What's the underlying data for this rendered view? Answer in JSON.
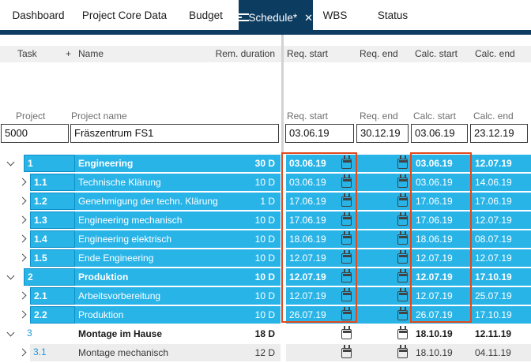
{
  "tabs": {
    "items": [
      {
        "label": "Dashboard"
      },
      {
        "label": "Project Core Data"
      },
      {
        "label": "Budget"
      },
      {
        "label": "Schedule*"
      },
      {
        "label": "WBS"
      },
      {
        "label": "Status"
      }
    ],
    "active": "Schedule*"
  },
  "grid_header": {
    "task": "Task",
    "add": "+",
    "name": "Name",
    "rem_duration": "Rem. duration",
    "req_start": "Req. start",
    "req_end": "Req. end",
    "calc_start": "Calc. start",
    "calc_end": "Calc. end"
  },
  "project_labels": {
    "project": "Project",
    "project_name": "Project name",
    "req_start": "Req. start",
    "req_end": "Req. end",
    "calc_start": "Calc. start",
    "calc_end": "Calc. end"
  },
  "project": {
    "id": "5000",
    "name": "Fräszentrum FS1",
    "req_start": "03.06.19",
    "req_end": "30.12.19",
    "calc_start": "03.06.19",
    "calc_end": "23.12.19"
  },
  "tasks": [
    {
      "num": "1",
      "name": "Engineering",
      "dur": "30 D",
      "req_start": "03.06.19",
      "calc_start": "03.06.19",
      "calc_end": "12.07.19",
      "level": 1,
      "summary": true,
      "expanded": true,
      "theme": "cyan"
    },
    {
      "num": "1.1",
      "name": "Technische Klärung",
      "dur": "10 D",
      "req_start": "03.06.19",
      "calc_start": "03.06.19",
      "calc_end": "14.06.19",
      "level": 2,
      "summary": false,
      "expanded": false,
      "theme": "cyan"
    },
    {
      "num": "1.2",
      "name": "Genehmigung der techn. Klärung",
      "dur": "1 D",
      "req_start": "17.06.19",
      "calc_start": "17.06.19",
      "calc_end": "17.06.19",
      "level": 2,
      "summary": false,
      "expanded": false,
      "theme": "cyan"
    },
    {
      "num": "1.3",
      "name": "Engineering mechanisch",
      "dur": "10 D",
      "req_start": "17.06.19",
      "calc_start": "17.06.19",
      "calc_end": "12.07.19",
      "level": 2,
      "summary": false,
      "expanded": false,
      "theme": "cyan"
    },
    {
      "num": "1.4",
      "name": "Engineering elektrisch",
      "dur": "10 D",
      "req_start": "18.06.19",
      "calc_start": "18.06.19",
      "calc_end": "08.07.19",
      "level": 2,
      "summary": false,
      "expanded": false,
      "theme": "cyan"
    },
    {
      "num": "1.5",
      "name": "Ende Engineering",
      "dur": "10 D",
      "req_start": "12.07.19",
      "calc_start": "12.07.19",
      "calc_end": "12.07.19",
      "level": 2,
      "summary": false,
      "expanded": false,
      "theme": "cyan"
    },
    {
      "num": "2",
      "name": "Produktion",
      "dur": "10 D",
      "req_start": "12.07.19",
      "calc_start": "12.07.19",
      "calc_end": "17.10.19",
      "level": 1,
      "summary": true,
      "expanded": true,
      "theme": "cyan"
    },
    {
      "num": "2.1",
      "name": "Arbeitsvorbereitung",
      "dur": "10 D",
      "req_start": "12.07.19",
      "calc_start": "12.07.19",
      "calc_end": "25.07.19",
      "level": 2,
      "summary": false,
      "expanded": false,
      "theme": "cyan"
    },
    {
      "num": "2.2",
      "name": "Produktion",
      "dur": "10 D",
      "req_start": "26.07.19",
      "calc_start": "26.07.19",
      "calc_end": "17.10.19",
      "level": 2,
      "summary": false,
      "expanded": false,
      "theme": "cyan"
    },
    {
      "num": "3",
      "name": "Montage im Hause",
      "dur": "18 D",
      "req_start": "",
      "calc_start": "18.10.19",
      "calc_end": "12.11.19",
      "level": 1,
      "summary": true,
      "expanded": true,
      "theme": "white"
    },
    {
      "num": "3.1",
      "name": "Montage mechanisch",
      "dur": "12 D",
      "req_start": "",
      "calc_start": "18.10.19",
      "calc_end": "04.11.19",
      "level": 2,
      "summary": false,
      "expanded": false,
      "theme": "gray"
    }
  ],
  "colors": {
    "accent_cyan": "#29b4e8",
    "navy": "#0d3c61",
    "highlight_red": "#e2491d",
    "task_number_blue": "#1899d6",
    "header_bg": "#f0f0f0"
  }
}
